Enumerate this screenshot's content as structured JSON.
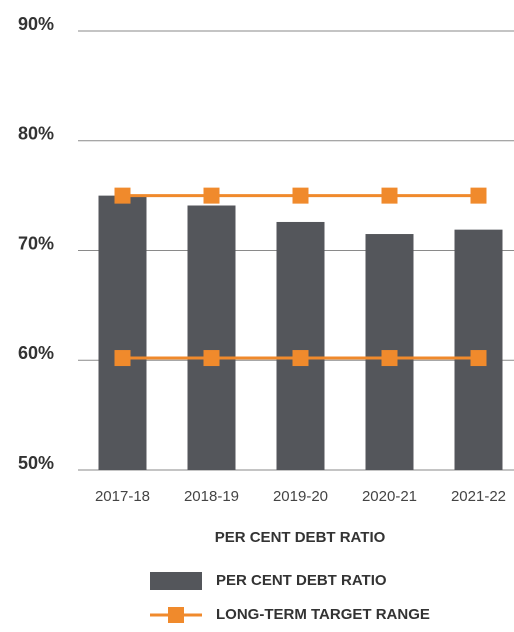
{
  "chart_data": {
    "type": "bar",
    "x_label": "PER CENT DEBT RATIO",
    "categories": [
      "2017-18",
      "2018-19",
      "2019-20",
      "2020-21",
      "2021-22"
    ],
    "series": [
      {
        "name": "PER CENT DEBT RATIO",
        "color": "#54565b",
        "values": [
          75,
          74.1,
          72.6,
          71.5,
          71.9
        ]
      }
    ],
    "target_range": {
      "name": "LONG-TERM TARGET RANGE",
      "color": "#f08a2c",
      "upper": [
        75,
        75,
        75,
        75,
        75
      ],
      "lower": [
        60.2,
        60.2,
        60.2,
        60.2,
        60.2
      ]
    },
    "ylim": [
      50,
      90
    ],
    "yticks": [
      {
        "value": 50,
        "label": "50%"
      },
      {
        "value": 60,
        "label": "60%"
      },
      {
        "value": 70,
        "label": "70%"
      },
      {
        "value": 80,
        "label": "80%"
      },
      {
        "value": 90,
        "label": "90%"
      }
    ],
    "grid": true
  }
}
